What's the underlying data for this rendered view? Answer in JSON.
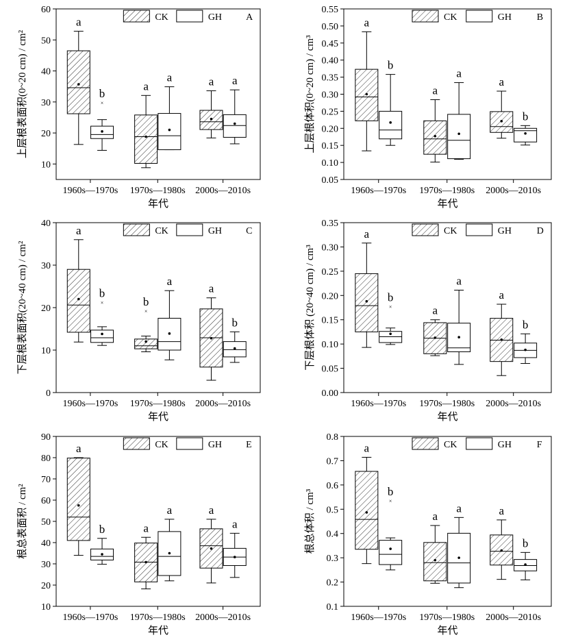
{
  "common": {
    "xlabel": "年代",
    "categories": [
      "1960s—1970s",
      "1970s—1980s",
      "2000s—2010s"
    ],
    "legend": [
      "CK",
      "GH"
    ]
  },
  "chart_data": [
    {
      "id": "A",
      "type": "box",
      "ylabel": "上层根表面积(0~20 cm) / cm²",
      "ylim": [
        5,
        60
      ],
      "yticks": [
        10,
        20,
        30,
        40,
        50,
        60
      ],
      "series": [
        {
          "group": "CK",
          "boxes": [
            {
              "min": 16.3,
              "q1": 26.2,
              "median": 34.6,
              "q3": 46.5,
              "max": 52.8,
              "mean": 35.7,
              "label": "a"
            },
            {
              "min": 8.8,
              "q1": 10.2,
              "median": 18.8,
              "q3": 25.8,
              "max": 32.1,
              "mean": 18.8,
              "label": "a"
            },
            {
              "min": 18.4,
              "q1": 21.1,
              "median": 23.6,
              "q3": 27.3,
              "max": 33.6,
              "mean": 24.5,
              "label": "a"
            }
          ]
        },
        {
          "group": "GH",
          "boxes": [
            {
              "min": 14.4,
              "q1": 18.2,
              "median": 19.5,
              "q3": 22.2,
              "max": 24.3,
              "mean": 20.5,
              "outliers": [
                29.7
              ],
              "label": "b"
            },
            {
              "min": 14.6,
              "q1": 14.6,
              "median": 19.1,
              "q3": 26.3,
              "max": 34.9,
              "mean": 21.0,
              "label": "a"
            },
            {
              "min": 16.5,
              "q1": 18.6,
              "median": 22.4,
              "q3": 25.9,
              "max": 33.9,
              "mean": 23.0,
              "label": "a"
            }
          ]
        }
      ]
    },
    {
      "id": "B",
      "type": "box",
      "ylabel": "上层根体积(0~20 cm) / cm³",
      "ylim": [
        0.05,
        0.55
      ],
      "yticks": [
        0.05,
        0.1,
        0.15,
        0.2,
        0.25,
        0.3,
        0.35,
        0.4,
        0.45,
        0.5,
        0.55
      ],
      "series": [
        {
          "group": "CK",
          "boxes": [
            {
              "min": 0.134,
              "q1": 0.222,
              "median": 0.292,
              "q3": 0.373,
              "max": 0.483,
              "mean": 0.3,
              "label": "a"
            },
            {
              "min": 0.101,
              "q1": 0.124,
              "median": 0.169,
              "q3": 0.222,
              "max": 0.284,
              "mean": 0.177,
              "label": "a"
            },
            {
              "min": 0.171,
              "q1": 0.188,
              "median": 0.205,
              "q3": 0.249,
              "max": 0.309,
              "mean": 0.221,
              "label": "a"
            }
          ]
        },
        {
          "group": "GH",
          "boxes": [
            {
              "min": 0.15,
              "q1": 0.169,
              "median": 0.195,
              "q3": 0.25,
              "max": 0.358,
              "mean": 0.217,
              "label": "b"
            },
            {
              "min": 0.109,
              "q1": 0.111,
              "median": 0.165,
              "q3": 0.241,
              "max": 0.334,
              "mean": 0.184,
              "label": "a"
            },
            {
              "min": 0.151,
              "q1": 0.16,
              "median": 0.193,
              "q3": 0.2,
              "max": 0.208,
              "mean": 0.185,
              "label": "b"
            }
          ]
        }
      ]
    },
    {
      "id": "C",
      "type": "box",
      "ylabel": "下层根表面积(20~40 cm) / cm²",
      "ylim": [
        0,
        40
      ],
      "yticks": [
        0,
        10,
        20,
        30,
        40
      ],
      "series": [
        {
          "group": "CK",
          "boxes": [
            {
              "min": 11.9,
              "q1": 14.2,
              "median": 20.6,
              "q3": 29.0,
              "max": 36.0,
              "mean": 22.0,
              "label": "a"
            },
            {
              "min": 9.6,
              "q1": 10.3,
              "median": 11.0,
              "q3": 12.6,
              "max": 13.3,
              "mean": 12.0,
              "outliers": [
                19.2
              ],
              "label": "b"
            },
            {
              "min": 2.9,
              "q1": 6.0,
              "median": 12.9,
              "q3": 19.7,
              "max": 22.3,
              "mean": 12.8,
              "label": "a"
            }
          ]
        },
        {
          "group": "GH",
          "boxes": [
            {
              "min": 11.1,
              "q1": 11.8,
              "median": 12.9,
              "q3": 14.7,
              "max": 15.5,
              "mean": 13.8,
              "outliers": [
                21.2
              ],
              "label": "b"
            },
            {
              "min": 7.7,
              "q1": 10.0,
              "median": 12.0,
              "q3": 17.5,
              "max": 24.0,
              "mean": 13.9,
              "label": "a"
            },
            {
              "min": 7.1,
              "q1": 8.4,
              "median": 10.1,
              "q3": 12.0,
              "max": 14.3,
              "mean": 10.4,
              "label": "b"
            }
          ]
        }
      ]
    },
    {
      "id": "D",
      "type": "box",
      "ylabel": "下层根体积 (20~40 cm) / cm³",
      "ylim": [
        0,
        0.35
      ],
      "yticks": [
        0.0,
        0.05,
        0.1,
        0.15,
        0.2,
        0.25,
        0.3,
        0.35
      ],
      "series": [
        {
          "group": "CK",
          "boxes": [
            {
              "min": 0.093,
              "q1": 0.125,
              "median": 0.179,
              "q3": 0.245,
              "max": 0.308,
              "mean": 0.188,
              "label": "a"
            },
            {
              "min": 0.076,
              "q1": 0.08,
              "median": 0.112,
              "q3": 0.144,
              "max": 0.15,
              "mean": 0.113,
              "label": "a"
            },
            {
              "min": 0.035,
              "q1": 0.064,
              "median": 0.108,
              "q3": 0.153,
              "max": 0.182,
              "mean": 0.109,
              "label": "a"
            }
          ]
        },
        {
          "group": "GH",
          "boxes": [
            {
              "min": 0.099,
              "q1": 0.103,
              "median": 0.115,
              "q3": 0.126,
              "max": 0.133,
              "mean": 0.121,
              "outliers": [
                0.177
              ],
              "label": "b"
            },
            {
              "min": 0.058,
              "q1": 0.084,
              "median": 0.092,
              "q3": 0.143,
              "max": 0.211,
              "mean": 0.114,
              "label": "a"
            },
            {
              "min": 0.06,
              "q1": 0.072,
              "median": 0.087,
              "q3": 0.102,
              "max": 0.121,
              "mean": 0.088,
              "label": "b"
            }
          ]
        }
      ]
    },
    {
      "id": "E",
      "type": "box",
      "ylabel": "根总表面积 / cm²",
      "ylim": [
        10,
        90
      ],
      "yticks": [
        10,
        20,
        30,
        40,
        50,
        60,
        70,
        80,
        90
      ],
      "series": [
        {
          "group": "CK",
          "boxes": [
            {
              "min": 34.0,
              "q1": 41.0,
              "median": 52.0,
              "q3": 79.8,
              "max": 80.0,
              "mean": 57.5,
              "label": "a"
            },
            {
              "min": 18.2,
              "q1": 21.5,
              "median": 30.8,
              "q3": 39.8,
              "max": 42.5,
              "mean": 30.8,
              "label": "a"
            },
            {
              "min": 21.0,
              "q1": 28.0,
              "median": 38.5,
              "q3": 46.5,
              "max": 51.0,
              "mean": 37.2,
              "label": "a"
            }
          ]
        },
        {
          "group": "GH",
          "boxes": [
            {
              "min": 29.8,
              "q1": 31.8,
              "median": 33.5,
              "q3": 37.0,
              "max": 42.0,
              "mean": 34.5,
              "label": "b"
            },
            {
              "min": 22.0,
              "q1": 24.5,
              "median": 33.5,
              "q3": 45.2,
              "max": 51.0,
              "mean": 35.0,
              "label": "a"
            },
            {
              "min": 23.6,
              "q1": 29.2,
              "median": 33.2,
              "q3": 37.3,
              "max": 44.4,
              "mean": 33.2,
              "label": "a"
            }
          ]
        }
      ]
    },
    {
      "id": "F",
      "type": "box",
      "ylabel": "根总体积 / cm³",
      "ylim": [
        0.1,
        0.8
      ],
      "yticks": [
        0.1,
        0.2,
        0.3,
        0.4,
        0.5,
        0.6,
        0.7,
        0.8
      ],
      "series": [
        {
          "group": "CK",
          "boxes": [
            {
              "min": 0.276,
              "q1": 0.335,
              "median": 0.458,
              "q3": 0.656,
              "max": 0.714,
              "mean": 0.487,
              "label": "a"
            },
            {
              "min": 0.195,
              "q1": 0.205,
              "median": 0.28,
              "q3": 0.363,
              "max": 0.433,
              "mean": 0.29,
              "label": "a"
            },
            {
              "min": 0.211,
              "q1": 0.27,
              "median": 0.327,
              "q3": 0.394,
              "max": 0.456,
              "mean": 0.33,
              "label": "a"
            }
          ]
        },
        {
          "group": "GH",
          "boxes": [
            {
              "min": 0.25,
              "q1": 0.272,
              "median": 0.314,
              "q3": 0.372,
              "max": 0.382,
              "mean": 0.337,
              "outliers": [
                0.535
              ],
              "label": "b"
            },
            {
              "min": 0.177,
              "q1": 0.196,
              "median": 0.279,
              "q3": 0.401,
              "max": 0.466,
              "mean": 0.3,
              "label": "a"
            },
            {
              "min": 0.209,
              "q1": 0.246,
              "median": 0.268,
              "q3": 0.293,
              "max": 0.322,
              "mean": 0.272,
              "label": "b"
            }
          ]
        }
      ]
    }
  ]
}
